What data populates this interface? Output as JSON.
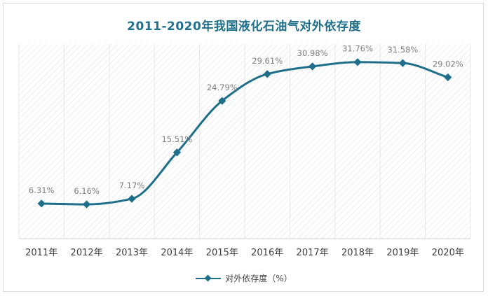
{
  "chart_data": {
    "type": "line",
    "title": "2011-2020年我国液化石油气对外依存度",
    "categories": [
      "2011年",
      "2012年",
      "2013年",
      "2014年",
      "2015年",
      "2016年",
      "2017年",
      "2018年",
      "2019年",
      "2020年"
    ],
    "series": [
      {
        "name": "对外依存度（%）",
        "values": [
          6.31,
          6.16,
          7.17,
          15.51,
          24.79,
          29.61,
          30.98,
          31.76,
          31.58,
          29.02
        ],
        "labels": [
          "6.31%",
          "6.16%",
          "7.17%",
          "15.51%",
          "24.79%",
          "29.61%",
          "30.98%",
          "31.76%",
          "31.58%",
          "29.02%"
        ]
      }
    ],
    "xlabel": "",
    "ylabel": "",
    "ylim": [
      0,
      35
    ],
    "smooth": true,
    "grid": true,
    "legend_position": "bottom"
  },
  "colors": {
    "line": "#1f6f8b",
    "title": "#1f6f8b",
    "label": "#7f7f7f",
    "axis_text": "#404040",
    "hatch": "#e2e2e2"
  }
}
